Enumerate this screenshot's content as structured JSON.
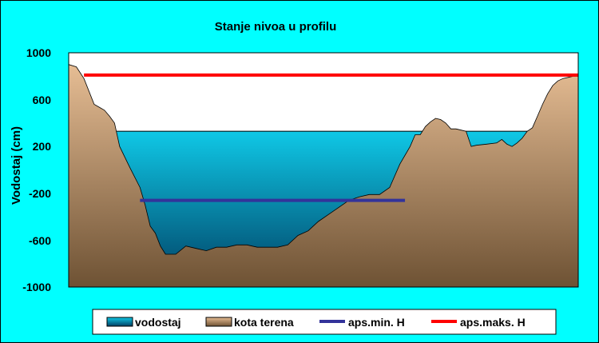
{
  "chart_data": {
    "type": "area",
    "title": "Stanje nivoa u profilu",
    "xlabel": "",
    "ylabel": "Vodostaj (cm)",
    "ylim": [
      -1000,
      1000
    ],
    "y_ticks": [
      "1000",
      "600",
      "200",
      "-200",
      "-600",
      "-1000"
    ],
    "grid": false,
    "legend_position": "bottom",
    "colors": {
      "background": "#00ffff",
      "plot_area": "#ffffff",
      "water_top": "#0fc8e6",
      "water_bottom": "#003f63",
      "terrain_top": "#e6bd94",
      "terrain_bottom": "#6e5234",
      "min_line": "#33339a",
      "max_line": "#ff0000"
    },
    "series": [
      {
        "name": "vodostaj",
        "kind": "area",
        "value": 330,
        "x_range": [
          9,
          98
        ]
      },
      {
        "name": "kota terena",
        "kind": "area",
        "x": [
          0,
          1.5,
          3,
          5,
          7,
          8,
          9,
          10,
          12,
          14,
          15,
          16,
          17,
          18,
          19,
          21,
          23,
          25,
          27,
          29,
          31,
          33,
          35,
          37,
          39,
          41,
          43,
          45,
          47,
          48,
          49,
          51,
          53,
          55,
          57,
          59,
          61,
          63,
          65,
          67,
          68,
          69,
          70,
          71,
          72,
          73,
          74,
          75,
          76,
          77,
          78,
          79,
          80,
          82,
          84,
          85,
          86,
          87,
          88,
          89,
          90,
          91,
          92,
          93,
          94,
          95,
          96,
          97,
          98,
          99,
          100
        ],
        "values": [
          900,
          880,
          780,
          560,
          510,
          460,
          400,
          200,
          20,
          -150,
          -300,
          -480,
          -540,
          -650,
          -720,
          -720,
          -650,
          -670,
          -690,
          -660,
          -660,
          -640,
          -640,
          -660,
          -660,
          -660,
          -640,
          -560,
          -520,
          -480,
          -440,
          -380,
          -320,
          -260,
          -230,
          -210,
          -210,
          -150,
          50,
          200,
          300,
          300,
          370,
          410,
          440,
          430,
          400,
          350,
          350,
          340,
          330,
          200,
          210,
          220,
          230,
          260,
          220,
          200,
          230,
          270,
          330,
          360,
          460,
          560,
          650,
          720,
          760,
          780,
          790,
          800,
          800
        ]
      },
      {
        "name": "aps.min. H",
        "kind": "line",
        "value": -260,
        "x_range": [
          14,
          66
        ]
      },
      {
        "name": "aps.maks. H",
        "kind": "line",
        "value": 810,
        "x_range": [
          3,
          100
        ]
      }
    ]
  }
}
